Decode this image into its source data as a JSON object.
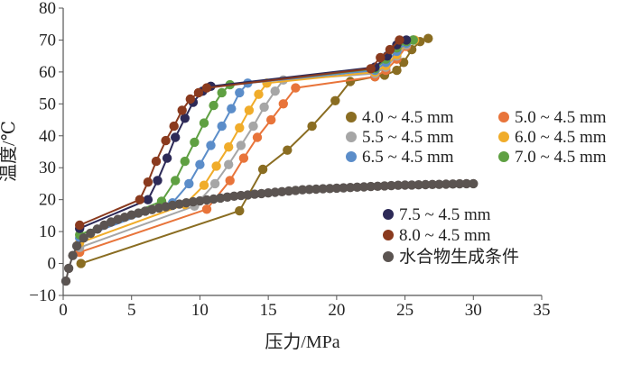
{
  "chart_data": {
    "type": "line",
    "xlabel": "压力/MPa",
    "ylabel": "温度/℃",
    "xlim": [
      0,
      35
    ],
    "ylim": [
      -10,
      80
    ],
    "xticks": [
      "0",
      "5",
      "10",
      "15",
      "20",
      "25",
      "30",
      "35"
    ],
    "yticks": [
      "−10",
      "0",
      "10",
      "20",
      "30",
      "40",
      "50",
      "60",
      "70",
      "80"
    ],
    "grid": false,
    "series": [
      {
        "name": "4.0 ~ 4.5 mm",
        "color": "#8a6d22",
        "x": [
          1.3,
          12.9,
          14.6,
          16.4,
          18.2,
          19.9,
          21.0,
          22.8,
          23.5,
          24.4,
          24.9,
          25.5,
          26.1,
          26.7
        ],
        "y": [
          0,
          16.5,
          29.5,
          35.5,
          43,
          51,
          57,
          58.5,
          59,
          60.5,
          63,
          67,
          69.5,
          70.5
        ]
      },
      {
        "name": "5.0 ~ 4.5 mm",
        "color": "#e8743a",
        "x": [
          1.2,
          10.5,
          12.2,
          13.2,
          14.2,
          15.2,
          16.1,
          17.0,
          22.8,
          23.6,
          24.4,
          25.1,
          25.6
        ],
        "y": [
          3.5,
          17,
          26,
          33,
          39.5,
          45,
          50,
          55,
          58.5,
          60.5,
          64,
          68,
          70
        ]
      },
      {
        "name": "5.5 ~ 4.5 mm",
        "color": "#a6a6a6",
        "x": [
          1.2,
          9.6,
          11.1,
          12.1,
          13.0,
          13.9,
          14.7,
          15.5,
          16.1,
          22.8,
          23.6,
          24.4,
          25.1,
          25.6
        ],
        "y": [
          5,
          18,
          25,
          31,
          37,
          43,
          49,
          54,
          57.5,
          59.5,
          61.5,
          65,
          68.5,
          70
        ]
      },
      {
        "name": "6.0 ~ 4.5 mm",
        "color": "#f0ac2a",
        "x": [
          1.2,
          8.9,
          10.3,
          11.2,
          12.1,
          12.9,
          13.6,
          14.3,
          14.9,
          22.8,
          23.6,
          24.4,
          25.1,
          25.7
        ],
        "y": [
          6.5,
          18.5,
          24.5,
          30.5,
          36.5,
          42.5,
          48,
          53,
          56.5,
          60,
          62,
          65.5,
          69,
          70
        ]
      },
      {
        "name": "6.5 ~ 4.5 mm",
        "color": "#5b8dc9",
        "x": [
          1.2,
          8.0,
          9.2,
          10.0,
          10.8,
          11.6,
          12.3,
          12.9,
          13.5,
          22.8,
          23.6,
          24.4,
          25.1,
          25.6
        ],
        "y": [
          8,
          19,
          25,
          31,
          37,
          43,
          48.5,
          53.5,
          56.5,
          60.5,
          63,
          66.5,
          69,
          70
        ]
      },
      {
        "name": "7.0 ~ 4.5 mm",
        "color": "#5fa042",
        "x": [
          1.2,
          7.2,
          8.2,
          8.9,
          9.6,
          10.3,
          11.0,
          11.6,
          12.2,
          22.8,
          23.6,
          24.4,
          25.1,
          25.6
        ],
        "y": [
          9,
          19.5,
          26,
          32,
          38,
          44,
          49.5,
          53.5,
          56,
          61,
          64,
          67.5,
          69.5,
          70
        ]
      },
      {
        "name": "7.5 ~ 4.5 mm",
        "color": "#2d2a57",
        "x": [
          1.2,
          6.2,
          6.9,
          7.6,
          8.2,
          8.9,
          9.5,
          10.2,
          10.8,
          22.8,
          23.7,
          24.4,
          25.1
        ],
        "y": [
          11,
          20,
          26,
          33,
          39.5,
          45.5,
          50.5,
          54,
          55.5,
          61.5,
          65,
          68.5,
          70
        ]
      },
      {
        "name": "8.0 ~ 4.5 mm",
        "color": "#8a3a1e",
        "x": [
          1.2,
          5.6,
          6.2,
          6.8,
          7.5,
          8.1,
          8.7,
          9.3,
          9.9,
          10.5,
          22.5,
          23.2,
          23.9,
          24.6
        ],
        "y": [
          12,
          20,
          25.5,
          32,
          38.5,
          43,
          48,
          51.5,
          53.5,
          55,
          61,
          64.5,
          67,
          70
        ]
      },
      {
        "name": "水合物生成条件",
        "color": "#5b5451",
        "x": [
          0.2,
          0.4,
          0.7,
          1.0,
          1.5,
          2.0,
          2.5,
          3.0,
          3.5,
          4.0,
          4.5,
          5.0,
          5.5,
          6.0,
          6.5,
          7.0,
          7.5,
          8.0,
          8.5,
          9.0,
          9.5,
          10.0,
          10.5,
          11.0,
          11.5,
          12.0,
          12.5,
          13.0,
          13.5,
          14.0,
          14.5,
          15.0,
          15.5,
          16.0,
          16.5,
          17.0,
          17.5,
          18.0,
          18.5,
          19.0,
          19.5,
          20.0,
          20.5,
          21.0,
          21.5,
          22.0,
          22.5,
          23.0,
          23.5,
          24.0,
          24.5,
          25.0,
          25.5,
          26.0,
          26.5,
          27.0,
          27.5,
          28.0,
          28.5,
          29.0,
          29.5,
          30.0
        ],
        "y": [
          -5.5,
          -1.5,
          2.5,
          5.5,
          8,
          9.5,
          10.8,
          12,
          13,
          13.8,
          14.5,
          15.2,
          15.8,
          16.4,
          16.9,
          17.4,
          17.8,
          18.2,
          18.6,
          19,
          19.3,
          19.6,
          19.9,
          20.2,
          20.5,
          20.8,
          21.1,
          21.3,
          21.5,
          21.7,
          21.9,
          22.1,
          22.3,
          22.5,
          22.7,
          22.9,
          23.1,
          23.2,
          23.3,
          23.4,
          23.5,
          23.6,
          23.7,
          23.8,
          23.9,
          24,
          24.1,
          24.2,
          24.3,
          24.4,
          24.5,
          24.55,
          24.6,
          24.65,
          24.7,
          24.75,
          24.8,
          24.85,
          24.9,
          24.95,
          25,
          25
        ]
      }
    ],
    "legend_placement": "right"
  }
}
